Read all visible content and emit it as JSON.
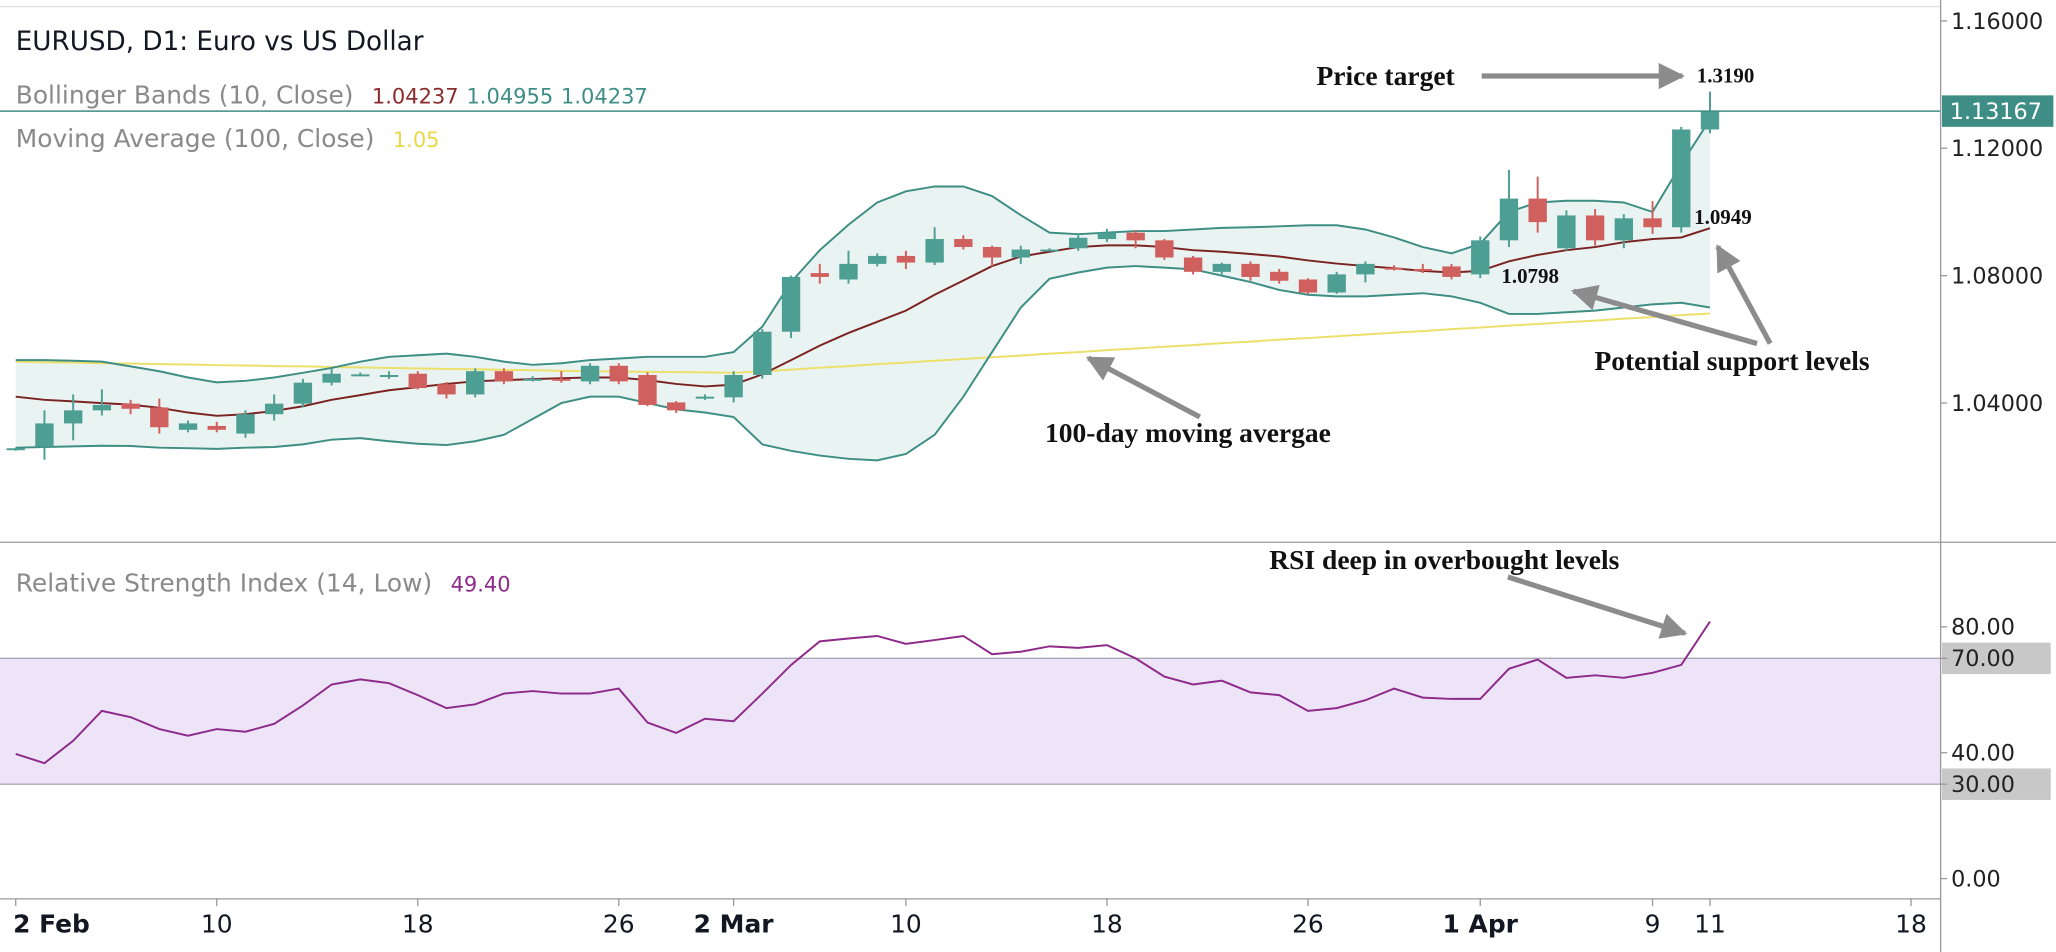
{
  "chart_data": [
    {
      "type": "candlestick",
      "title": "EURUSD, D1: Euro vs US Dollar",
      "legend": [
        {
          "name": "Bollinger Bands (10, Close)",
          "readout": [
            {
              "value": 1.04237,
              "color": "#8b2c2c"
            },
            {
              "value": 1.04955,
              "color": "#3e8e85"
            },
            {
              "value": 1.04237,
              "color": "#3e8e85"
            }
          ]
        },
        {
          "name": "Moving Average (100, Close)",
          "readout": [
            {
              "value": 1.05,
              "color": "#e8d84a"
            }
          ]
        }
      ],
      "categories": [
        "2 Feb",
        null,
        null,
        null,
        null,
        null,
        null,
        "10",
        null,
        null,
        null,
        null,
        null,
        null,
        "18",
        null,
        null,
        null,
        null,
        null,
        null,
        "26",
        null,
        null,
        null,
        "2 Mar",
        null,
        null,
        null,
        null,
        null,
        "10",
        null,
        null,
        null,
        null,
        null,
        null,
        "18",
        null,
        null,
        null,
        null,
        null,
        null,
        "26",
        null,
        null,
        null,
        null,
        null,
        "1 Apr",
        null,
        null,
        null,
        null,
        null,
        "9",
        null,
        "11",
        null,
        null,
        null,
        null,
        null,
        null,
        "18"
      ],
      "open": [
        1.0254,
        1.0263,
        1.0336,
        1.0377,
        1.0398,
        1.0386,
        1.0316,
        1.0328,
        1.0304,
        1.0365,
        1.0398,
        1.0464,
        1.0488,
        1.0486,
        1.0492,
        1.0459,
        1.0427,
        1.05,
        1.0474,
        1.0476,
        1.0468,
        1.0517,
        1.0488,
        1.0402,
        1.0418,
        1.0418,
        1.0488,
        1.0624,
        1.0808,
        1.0788,
        1.0837,
        1.0862,
        1.0841,
        1.0915,
        1.089,
        1.0857,
        1.088,
        1.0886,
        1.0915,
        1.0935,
        1.0911,
        1.0857,
        1.0812,
        1.0837,
        1.0812,
        1.0788,
        1.0747,
        1.0804,
        1.0825,
        1.0821,
        1.0829,
        1.0804,
        1.0911,
        1.1042,
        1.0886,
        1.0989,
        1.0911,
        1.098,
        1.0952,
        1.1259,
        null,
        null,
        null,
        null,
        null,
        null,
        null
      ],
      "high": [
        1.026,
        1.0377,
        1.0427,
        1.0443,
        1.041,
        1.0414,
        1.0345,
        1.0341,
        1.0377,
        1.0427,
        1.0476,
        1.0509,
        1.0496,
        1.05,
        1.05,
        1.0466,
        1.0509,
        1.0509,
        1.0484,
        1.05,
        1.0525,
        1.0525,
        1.0496,
        1.0406,
        1.0427,
        1.05,
        1.0632,
        1.08,
        1.0837,
        1.0878,
        1.087,
        1.0878,
        1.0952,
        1.0927,
        1.0894,
        1.0894,
        1.0886,
        1.0931,
        1.0947,
        1.0943,
        1.0915,
        1.0862,
        1.0841,
        1.0845,
        1.0821,
        1.0792,
        1.0812,
        1.0845,
        1.0833,
        1.0837,
        1.0837,
        1.0923,
        1.1132,
        1.1111,
        1.1005,
        1.1009,
        1.0993,
        1.1034,
        1.1267,
        1.1378,
        null,
        null,
        null,
        null,
        null,
        null,
        null
      ],
      "low": [
        1.025,
        1.0222,
        1.0283,
        1.0361,
        1.0365,
        1.0304,
        1.0308,
        1.0308,
        1.0291,
        1.0345,
        1.0386,
        1.0455,
        1.0484,
        1.0476,
        1.0443,
        1.0414,
        1.0418,
        1.0459,
        1.0468,
        1.0464,
        1.0459,
        1.0459,
        1.039,
        1.0369,
        1.041,
        1.0402,
        1.0476,
        1.0604,
        1.0775,
        1.0775,
        1.0829,
        1.0821,
        1.0833,
        1.0882,
        1.0829,
        1.0837,
        1.0878,
        1.0878,
        1.0906,
        1.0886,
        1.0849,
        1.0804,
        1.0804,
        1.0784,
        1.0775,
        1.0743,
        1.0743,
        1.0779,
        1.0816,
        1.0808,
        1.0788,
        1.0792,
        1.089,
        1.0935,
        1.0878,
        1.0894,
        1.0886,
        1.0931,
        1.0935,
        1.1247,
        null,
        null,
        null,
        null,
        null,
        null,
        null
      ],
      "close": [
        1.0258,
        1.0336,
        1.0377,
        1.0394,
        1.0382,
        1.0324,
        1.0336,
        1.0316,
        1.0365,
        1.0398,
        1.0464,
        1.0492,
        1.049,
        1.0488,
        1.0447,
        1.0427,
        1.05,
        1.0468,
        1.0476,
        1.0474,
        1.0517,
        1.0468,
        1.0394,
        1.0377,
        1.042,
        1.0488,
        1.0624,
        1.0796,
        1.0796,
        1.0837,
        1.0862,
        1.0841,
        1.0915,
        1.089,
        1.0857,
        1.0882,
        1.0882,
        1.0919,
        1.0935,
        1.0911,
        1.0857,
        1.0812,
        1.0837,
        1.0796,
        1.0784,
        1.0747,
        1.0804,
        1.0837,
        1.0823,
        1.082,
        1.0796,
        1.0911,
        1.1042,
        1.0968,
        1.0989,
        1.0911,
        1.098,
        1.0952,
        1.1259,
        1.1317,
        null,
        null,
        null,
        null,
        null,
        null,
        null
      ],
      "up_color": "#4d9e93",
      "down_color": "#d0605e",
      "bands": {
        "color": "#3e8e85",
        "middle_color": "#7b2222",
        "fill": "#e9f3f1",
        "upper": [
          1.0535,
          1.0535,
          1.0533,
          1.053,
          1.0515,
          1.05,
          1.048,
          1.0465,
          1.047,
          1.048,
          1.0495,
          1.051,
          1.053,
          1.0545,
          1.055,
          1.0555,
          1.0545,
          1.053,
          1.052,
          1.0525,
          1.0535,
          1.054,
          1.0545,
          1.0545,
          1.0545,
          1.056,
          1.064,
          1.078,
          1.088,
          1.096,
          1.103,
          1.1065,
          1.108,
          1.108,
          1.105,
          1.099,
          1.0935,
          1.093,
          1.0935,
          1.094,
          1.094,
          1.0945,
          1.095,
          1.0952,
          1.0955,
          1.0958,
          1.0958,
          1.0945,
          1.092,
          1.089,
          1.087,
          1.09,
          1.1,
          1.103,
          1.1035,
          1.1035,
          1.103,
          1.1,
          1.115,
          1.129,
          null,
          null,
          null,
          null,
          null,
          null,
          null
        ],
        "middle": [
          1.042,
          1.041,
          1.0405,
          1.04,
          1.0395,
          1.0385,
          1.037,
          1.036,
          1.0365,
          1.0375,
          1.039,
          1.041,
          1.0425,
          1.044,
          1.045,
          1.046,
          1.0468,
          1.0472,
          1.0475,
          1.0478,
          1.048,
          1.048,
          1.0472,
          1.046,
          1.0452,
          1.0458,
          1.049,
          1.0535,
          1.058,
          1.062,
          1.0655,
          1.069,
          1.074,
          1.0785,
          1.083,
          1.086,
          1.0875,
          1.089,
          1.0895,
          1.0895,
          1.089,
          1.088,
          1.0875,
          1.0868,
          1.086,
          1.0848,
          1.0838,
          1.083,
          1.0823,
          1.0815,
          1.081,
          1.0815,
          1.0845,
          1.0865,
          1.088,
          1.089,
          1.0905,
          1.0915,
          1.092,
          1.0949,
          null,
          null,
          null,
          null,
          null,
          null,
          null
        ],
        "lower": [
          1.026,
          1.0262,
          1.0264,
          1.0266,
          1.0265,
          1.026,
          1.0258,
          1.0256,
          1.026,
          1.0262,
          1.027,
          1.0285,
          1.029,
          1.028,
          1.0272,
          1.0268,
          1.028,
          1.03,
          1.035,
          1.04,
          1.042,
          1.042,
          1.04,
          1.038,
          1.037,
          1.0356,
          1.027,
          1.025,
          1.0235,
          1.0225,
          1.022,
          1.024,
          1.03,
          1.042,
          1.056,
          1.07,
          1.079,
          1.081,
          1.0825,
          1.083,
          1.0825,
          1.082,
          1.08,
          1.078,
          1.0755,
          1.074,
          1.0735,
          1.0735,
          1.074,
          1.0745,
          1.0735,
          1.0715,
          1.068,
          1.068,
          1.0685,
          1.069,
          1.07,
          1.071,
          1.0715,
          1.07,
          null,
          null,
          null,
          null,
          null,
          null,
          null
        ]
      },
      "moving_average": {
        "color": "#ede06a",
        "values": [
          1.053,
          1.0528,
          1.0527,
          1.0525,
          1.0524,
          1.0522,
          1.0521,
          1.0519,
          1.0518,
          1.0516,
          1.0515,
          1.0513,
          1.0512,
          1.051,
          1.0509,
          1.0507,
          1.0506,
          1.0504,
          1.0503,
          1.0501,
          1.05,
          1.0499,
          1.0498,
          1.0497,
          1.0496,
          1.0495,
          1.05,
          1.0505,
          1.0511,
          1.0516,
          1.0522,
          1.0527,
          1.0533,
          1.0538,
          1.0544,
          1.0549,
          1.0555,
          1.056,
          1.0566,
          1.0571,
          1.0577,
          1.0582,
          1.0588,
          1.0593,
          1.0599,
          1.0604,
          1.061,
          1.0615,
          1.0621,
          1.0626,
          1.0632,
          1.0637,
          1.0643,
          1.0648,
          1.0654,
          1.0659,
          1.0665,
          1.067,
          1.0676,
          1.0681,
          null,
          null,
          null,
          null,
          null,
          null,
          null
        ]
      },
      "last_price": 1.13167,
      "last_price_color": "#3e8e85",
      "ylim": [
        0.9965,
        1.1645
      ],
      "yticks": [
        {
          "value": 1.04,
          "label": "1.04000"
        },
        {
          "value": 1.08,
          "label": "1.08000"
        },
        {
          "value": 1.12,
          "label": "1.12000"
        },
        {
          "value": 1.16,
          "label": "1.16000"
        }
      ],
      "grid": false,
      "annotations": [
        {
          "text": "Price target"
        },
        {
          "value": 1.319,
          "label": "1.3190"
        },
        {
          "value": 1.0949
        },
        {
          "value": 1.0798
        },
        {
          "text": "Potential support levels"
        },
        {
          "text": "100-day moving avergae"
        },
        {
          "text": "RSI deep in overbought levels"
        }
      ]
    },
    {
      "type": "line",
      "legend": [
        {
          "name": "Relative Strength Index (14, Low)",
          "readout": [
            {
              "value": 49.4,
              "label": "49.40",
              "color": "#8e2a8a"
            }
          ]
        }
      ],
      "values": [
        39.6,
        36.7,
        43.8,
        53.3,
        51.3,
        47.5,
        45.4,
        47.5,
        46.7,
        49.2,
        55,
        61.7,
        63.3,
        62.1,
        58.3,
        54.2,
        55.4,
        58.8,
        59.6,
        58.8,
        58.8,
        60.4,
        49.6,
        46.3,
        50.8,
        50,
        58.8,
        67.9,
        75.4,
        76.3,
        77.1,
        74.6,
        75.8,
        77.1,
        71.3,
        72.1,
        73.8,
        73.3,
        74.2,
        70,
        64.2,
        61.7,
        62.9,
        59.2,
        58.3,
        53.3,
        54.2,
        56.7,
        60.4,
        57.5,
        57.1,
        57.1,
        66.7,
        69.6,
        63.8,
        64.6,
        63.8,
        65.4,
        67.9,
        81.7,
        null,
        null,
        null,
        null,
        null,
        null,
        null
      ],
      "color": "#8e2a8a",
      "band": [
        30,
        70
      ],
      "band_color": "#ede5f7",
      "ylim": [
        -6.25,
        106.7
      ],
      "yticks": [
        {
          "value": 0,
          "label": "0.00"
        },
        {
          "value": 30,
          "label": "30.00"
        },
        {
          "value": 40,
          "label": "40.00"
        },
        {
          "value": 70,
          "label": "70.00"
        },
        {
          "value": 80,
          "label": "80.00"
        }
      ]
    }
  ]
}
